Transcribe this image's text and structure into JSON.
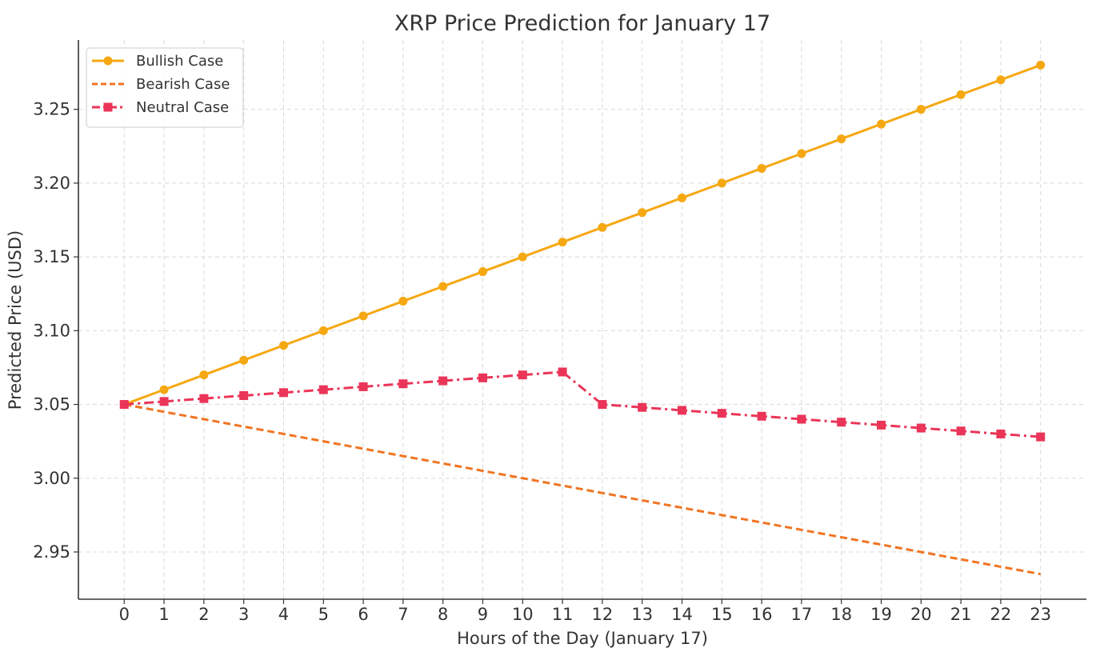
{
  "chart_data": {
    "type": "line",
    "title": "XRP Price Prediction for January 17",
    "xlabel": "Hours of the Day (January 17)",
    "ylabel": "Predicted Price (USD)",
    "x": [
      0,
      1,
      2,
      3,
      4,
      5,
      6,
      7,
      8,
      9,
      10,
      11,
      12,
      13,
      14,
      15,
      16,
      17,
      18,
      19,
      20,
      21,
      22,
      23
    ],
    "xlim": [
      -1.15,
      24.15
    ],
    "ylim": [
      2.918,
      3.297
    ],
    "yticks": [
      2.95,
      3.0,
      3.05,
      3.1,
      3.15,
      3.2,
      3.25
    ],
    "ytick_labels": [
      "2.95",
      "3.00",
      "3.05",
      "3.10",
      "3.15",
      "3.20",
      "3.25"
    ],
    "grid": true,
    "legend_position": "top-left",
    "series": [
      {
        "name": "Bullish Case",
        "color": "#F5A811",
        "line_style": "solid",
        "marker": "circle",
        "values": [
          3.05,
          3.06,
          3.07,
          3.08,
          3.09,
          3.1,
          3.11,
          3.12,
          3.13,
          3.14,
          3.15,
          3.16,
          3.17,
          3.18,
          3.19,
          3.2,
          3.21,
          3.22,
          3.23,
          3.24,
          3.25,
          3.26,
          3.27,
          3.28
        ]
      },
      {
        "name": "Bearish Case",
        "color": "#F07422",
        "line_style": "dashed",
        "marker": "none",
        "values": [
          3.05,
          3.045,
          3.04,
          3.035,
          3.03,
          3.025,
          3.02,
          3.015,
          3.01,
          3.005,
          3.0,
          2.995,
          2.99,
          2.985,
          2.98,
          2.975,
          2.97,
          2.965,
          2.96,
          2.955,
          2.95,
          2.945,
          2.94,
          2.935
        ]
      },
      {
        "name": "Neutral Case",
        "color": "#EA3558",
        "line_style": "dashdot",
        "marker": "square",
        "values": [
          3.05,
          3.052,
          3.054,
          3.056,
          3.058,
          3.06,
          3.062,
          3.064,
          3.066,
          3.068,
          3.07,
          3.072,
          3.05,
          3.048,
          3.046,
          3.044,
          3.042,
          3.04,
          3.038,
          3.036,
          3.034,
          3.032,
          3.03,
          3.028
        ]
      }
    ]
  }
}
